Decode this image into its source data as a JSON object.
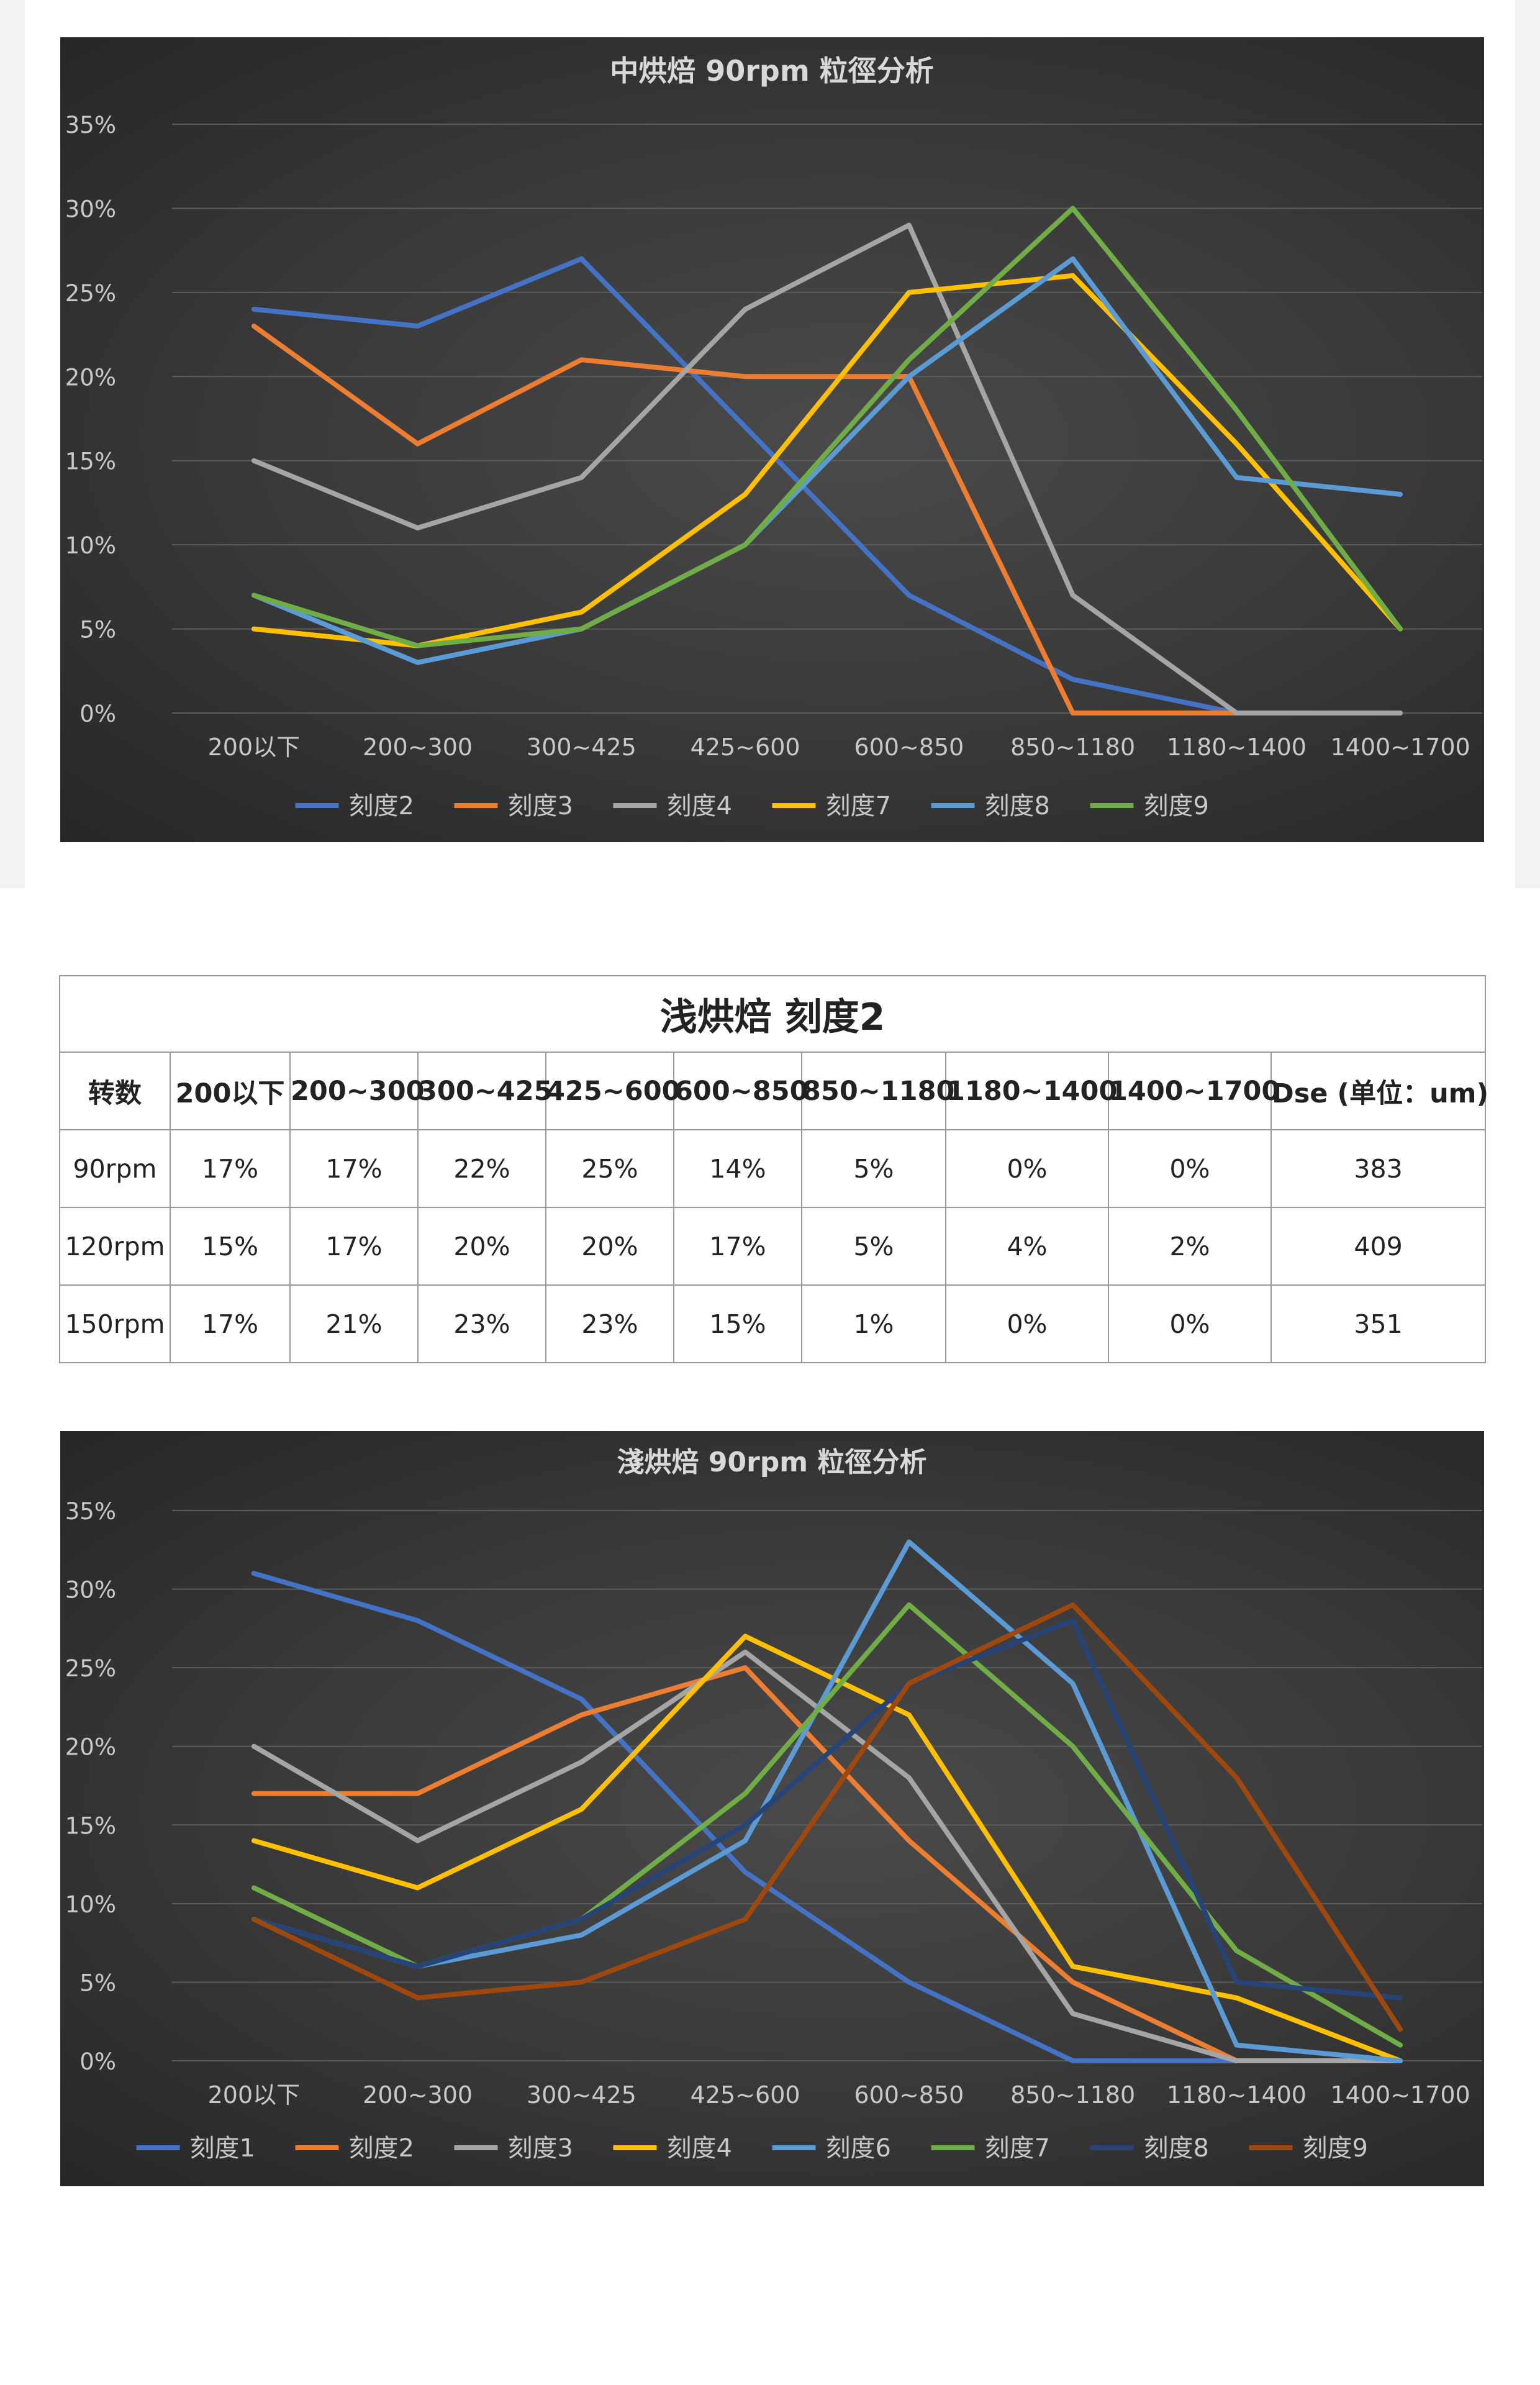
{
  "colors": {
    "blue": "#4472c4",
    "orange": "#ed7d31",
    "gray": "#a5a5a5",
    "yellow": "#ffc000",
    "light_blue": "#5b9bd5",
    "green": "#70ad47",
    "navy": "#264478",
    "brown": "#9e480e"
  },
  "chart_data": [
    {
      "type": "line",
      "title": "中烘焙 90rpm 粒徑分析",
      "categories": [
        "200以下",
        "200~300",
        "300~425",
        "425~600",
        "600~850",
        "850~1180",
        "1180~1400",
        "1400~1700"
      ],
      "ylim": [
        0,
        35
      ],
      "yticks": [
        "0%",
        "5%",
        "10%",
        "15%",
        "20%",
        "25%",
        "30%",
        "35%"
      ],
      "grid": true,
      "legend": "bottom",
      "series": [
        {
          "name": "刻度2",
          "color": "#4472c4",
          "values": [
            24,
            23,
            27,
            17,
            7,
            2,
            0,
            null
          ]
        },
        {
          "name": "刻度3",
          "color": "#ed7d31",
          "values": [
            23,
            16,
            21,
            20,
            20,
            0,
            0,
            null
          ]
        },
        {
          "name": "刻度4",
          "color": "#a5a5a5",
          "values": [
            15,
            11,
            14,
            24,
            29,
            7,
            0,
            0
          ]
        },
        {
          "name": "刻度7",
          "color": "#ffc000",
          "values": [
            5,
            4,
            6,
            13,
            25,
            26,
            16,
            5
          ]
        },
        {
          "name": "刻度8",
          "color": "#5b9bd5",
          "values": [
            7,
            3,
            5,
            10,
            20,
            27,
            14,
            13
          ]
        },
        {
          "name": "刻度9",
          "color": "#70ad47",
          "values": [
            7,
            4,
            5,
            10,
            21,
            30,
            18,
            5
          ]
        }
      ]
    },
    {
      "type": "table",
      "title": "浅烘焙 刻度2",
      "columns": [
        "转数",
        "200以下",
        "200~300",
        "300~425",
        "425~600",
        "600~850",
        "850~1180",
        "1180~1400",
        "1400~1700",
        "Dse (单位：um)"
      ],
      "rows": [
        [
          "90rpm",
          "17%",
          "17%",
          "22%",
          "25%",
          "14%",
          "5%",
          "0%",
          "0%",
          "383"
        ],
        [
          "120rpm",
          "15%",
          "17%",
          "20%",
          "20%",
          "17%",
          "5%",
          "4%",
          "2%",
          "409"
        ],
        [
          "150rpm",
          "17%",
          "21%",
          "23%",
          "23%",
          "15%",
          "1%",
          "0%",
          "0%",
          "351"
        ]
      ]
    },
    {
      "type": "line",
      "title": "淺烘焙 90rpm 粒徑分析",
      "categories": [
        "200以下",
        "200~300",
        "300~425",
        "425~600",
        "600~850",
        "850~1180",
        "1180~1400",
        "1400~1700"
      ],
      "ylim": [
        0,
        35
      ],
      "yticks": [
        "0%",
        "5%",
        "10%",
        "15%",
        "20%",
        "25%",
        "30%",
        "35%"
      ],
      "grid": true,
      "legend": "bottom",
      "series": [
        {
          "name": "刻度1",
          "color": "#4472c4",
          "values": [
            31,
            28,
            23,
            12,
            5,
            0,
            0,
            0
          ]
        },
        {
          "name": "刻度2",
          "color": "#ed7d31",
          "values": [
            17,
            17,
            22,
            25,
            14,
            5,
            0,
            0
          ]
        },
        {
          "name": "刻度3",
          "color": "#a5a5a5",
          "values": [
            20,
            14,
            19,
            26,
            18,
            3,
            0,
            0
          ]
        },
        {
          "name": "刻度4",
          "color": "#ffc000",
          "values": [
            14,
            11,
            16,
            27,
            22,
            6,
            4,
            0
          ]
        },
        {
          "name": "刻度6",
          "color": "#5b9bd5",
          "values": [
            9,
            6,
            8,
            14,
            33,
            24,
            1,
            0
          ]
        },
        {
          "name": "刻度7",
          "color": "#70ad47",
          "values": [
            11,
            6,
            9,
            17,
            29,
            20,
            7,
            1
          ]
        },
        {
          "name": "刻度8",
          "color": "#264478",
          "values": [
            9,
            6,
            9,
            15,
            24,
            28,
            5,
            4
          ]
        },
        {
          "name": "刻度9",
          "color": "#9e480e",
          "values": [
            9,
            4,
            5,
            9,
            24,
            29,
            18,
            2
          ]
        }
      ]
    }
  ]
}
